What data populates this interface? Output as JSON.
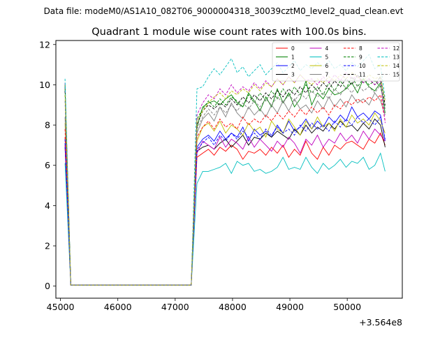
{
  "suptitle": "Data file: modeM0/AS1A10_082T06_9000004318_30039cztM0_level2_quad_clean.evt",
  "chart_data": {
    "type": "line",
    "title": "Quadrant 1 module wise count rates with 100.0s bins.",
    "xlabel": "",
    "ylabel": "",
    "x_offset_label": "+3.564e8",
    "xlim": [
      44920,
      50960
    ],
    "ylim": [
      -0.6,
      12.2
    ],
    "xticks": [
      45000,
      46000,
      47000,
      48000,
      49000,
      50000
    ],
    "yticks": [
      0,
      2,
      4,
      6,
      8,
      10,
      12
    ],
    "grid": false,
    "legend_position": "top-right",
    "x": [
      45080,
      45180,
      47280,
      47380,
      47480,
      47580,
      47680,
      47780,
      47880,
      47980,
      48080,
      48180,
      48280,
      48380,
      48480,
      48580,
      48680,
      48780,
      48880,
      48980,
      49080,
      49180,
      49280,
      49380,
      49480,
      49580,
      49680,
      49780,
      49880,
      49980,
      50080,
      50180,
      50280,
      50380,
      50480,
      50580,
      50660
    ],
    "series": [
      {
        "name": "0",
        "color": "#ff0000",
        "dash": "solid",
        "values": [
          7.4,
          0.05,
          0.05,
          6.4,
          6.6,
          6.8,
          6.5,
          6.9,
          6.7,
          7.0,
          6.8,
          6.3,
          6.7,
          6.6,
          6.8,
          6.5,
          6.9,
          6.6,
          7.0,
          6.4,
          6.8,
          6.5,
          7.2,
          6.6,
          6.3,
          6.9,
          6.5,
          7.0,
          6.8,
          7.1,
          7.2,
          7.0,
          6.8,
          7.3,
          7.1,
          7.6,
          7.0
        ]
      },
      {
        "name": "1",
        "color": "#008000",
        "dash": "solid",
        "values": [
          9.9,
          0.05,
          0.05,
          7.9,
          8.9,
          9.1,
          9.2,
          9.0,
          9.3,
          9.5,
          9.1,
          8.9,
          9.6,
          9.2,
          8.7,
          9.4,
          8.9,
          9.8,
          9.1,
          9.6,
          8.9,
          9.3,
          10.2,
          9.0,
          9.6,
          9.3,
          9.8,
          9.5,
          9.6,
          9.8,
          10.1,
          9.6,
          10.3,
          9.9,
          9.7,
          10.1,
          8.6
        ]
      },
      {
        "name": "2",
        "color": "#0000ff",
        "dash": "solid",
        "values": [
          7.1,
          0.05,
          0.05,
          6.9,
          7.3,
          7.5,
          7.2,
          7.7,
          7.3,
          7.6,
          7.4,
          7.9,
          7.2,
          7.8,
          7.5,
          7.7,
          7.4,
          8.0,
          7.6,
          8.2,
          7.7,
          7.9,
          8.3,
          7.8,
          8.2,
          7.9,
          8.4,
          8.1,
          8.5,
          8.2,
          8.9,
          8.4,
          8.6,
          8.3,
          8.7,
          8.5,
          7.2
        ]
      },
      {
        "name": "3",
        "color": "#000000",
        "dash": "solid",
        "values": [
          6.9,
          0.05,
          0.05,
          6.7,
          6.9,
          7.0,
          6.8,
          7.1,
          7.3,
          6.9,
          7.2,
          7.5,
          7.0,
          7.4,
          7.3,
          7.6,
          7.4,
          7.7,
          7.5,
          7.3,
          7.8,
          7.5,
          8.0,
          7.6,
          7.9,
          7.7,
          8.1,
          7.8,
          8.2,
          7.9,
          8.0,
          7.7,
          8.1,
          7.8,
          8.3,
          8.0,
          6.9
        ]
      },
      {
        "name": "4",
        "color": "#bf00bf",
        "dash": "solid",
        "values": [
          7.0,
          0.05,
          0.05,
          6.6,
          7.2,
          7.0,
          6.8,
          7.4,
          6.9,
          7.3,
          7.1,
          6.8,
          7.4,
          6.9,
          7.3,
          7.0,
          6.7,
          7.2,
          6.9,
          7.4,
          7.1,
          6.6,
          7.3,
          7.0,
          7.5,
          6.9,
          7.3,
          7.1,
          7.6,
          7.2,
          7.5,
          7.1,
          7.7,
          7.3,
          7.8,
          7.5,
          7.2
        ]
      },
      {
        "name": "5",
        "color": "#00bfbf",
        "dash": "solid",
        "values": [
          6.1,
          0.05,
          0.05,
          5.1,
          5.7,
          5.7,
          5.8,
          5.9,
          6.1,
          5.6,
          6.2,
          6.0,
          6.1,
          5.7,
          5.8,
          5.6,
          5.7,
          5.9,
          6.4,
          5.8,
          5.9,
          5.8,
          6.4,
          5.9,
          5.6,
          6.1,
          5.8,
          6.0,
          6.3,
          5.9,
          6.2,
          6.1,
          6.4,
          5.8,
          6.0,
          6.6,
          5.7
        ]
      },
      {
        "name": "6",
        "color": "#bfbf00",
        "dash": "solid",
        "values": [
          8.1,
          0.05,
          0.05,
          7.2,
          7.9,
          8.1,
          7.7,
          8.2,
          7.6,
          8.0,
          7.8,
          7.5,
          8.1,
          7.7,
          7.9,
          7.4,
          8.2,
          7.8,
          7.6,
          8.3,
          7.9,
          7.5,
          8.2,
          7.8,
          8.4,
          7.9,
          8.1,
          7.7,
          8.3,
          7.9,
          8.5,
          8.1,
          8.3,
          8.0,
          8.6,
          8.2,
          7.6
        ]
      },
      {
        "name": "7",
        "color": "#808080",
        "dash": "solid",
        "values": [
          8.4,
          0.05,
          0.05,
          7.6,
          8.3,
          8.6,
          8.2,
          8.9,
          8.4,
          9.1,
          8.6,
          8.3,
          8.9,
          8.5,
          8.8,
          8.4,
          9.0,
          8.6,
          9.2,
          8.7,
          9.3,
          8.8,
          9.0,
          8.6,
          9.2,
          8.8,
          9.4,
          8.9,
          9.3,
          8.9,
          9.5,
          9.1,
          9.3,
          9.0,
          9.6,
          9.2,
          8.5
        ]
      },
      {
        "name": "8",
        "color": "#ff0000",
        "dash": "dashed",
        "values": [
          7.8,
          0.05,
          0.05,
          7.4,
          7.9,
          8.2,
          7.8,
          8.3,
          7.9,
          8.1,
          7.8,
          8.4,
          8.0,
          8.3,
          8.1,
          8.5,
          8.2,
          8.6,
          8.3,
          8.7,
          8.4,
          8.8,
          8.5,
          8.9,
          8.6,
          8.9,
          8.5,
          9.0,
          8.8,
          9.2,
          9.0,
          9.3,
          9.1,
          9.4,
          9.2,
          9.5,
          8.2
        ]
      },
      {
        "name": "9",
        "color": "#008000",
        "dash": "dashed",
        "values": [
          10.0,
          0.05,
          0.05,
          8.3,
          8.8,
          9.2,
          8.9,
          9.3,
          9.0,
          9.4,
          9.2,
          8.9,
          9.5,
          9.1,
          9.6,
          9.2,
          9.7,
          9.3,
          9.8,
          9.4,
          9.9,
          9.5,
          10.0,
          9.6,
          9.9,
          9.5,
          10.1,
          9.7,
          10.2,
          9.8,
          10.4,
          9.9,
          10.3,
          10.0,
          10.2,
          9.9,
          8.9
        ]
      },
      {
        "name": "10",
        "color": "#0000ff",
        "dash": "dashed",
        "values": [
          7.3,
          0.05,
          0.05,
          6.8,
          7.1,
          7.4,
          7.0,
          7.5,
          7.2,
          7.6,
          7.3,
          7.7,
          7.4,
          7.6,
          7.3,
          7.8,
          7.5,
          7.9,
          7.6,
          7.8,
          7.5,
          8.0,
          7.7,
          8.1,
          7.8,
          8.0,
          7.7,
          8.2,
          7.9,
          8.3,
          8.0,
          8.4,
          8.1,
          8.3,
          8.0,
          8.4,
          7.3
        ]
      },
      {
        "name": "11",
        "color": "#000000",
        "dash": "dashed",
        "values": [
          9.7,
          0.05,
          0.05,
          8.0,
          8.7,
          9.0,
          8.8,
          9.1,
          8.9,
          9.3,
          9.0,
          9.4,
          9.1,
          9.5,
          9.2,
          9.6,
          9.3,
          9.7,
          9.4,
          9.8,
          9.5,
          9.9,
          9.6,
          10.0,
          9.7,
          10.1,
          9.8,
          10.2,
          9.9,
          10.3,
          10.0,
          10.5,
          10.1,
          10.3,
          10.0,
          10.4,
          9.0
        ]
      },
      {
        "name": "12",
        "color": "#bf00bf",
        "dash": "dashed",
        "values": [
          10.1,
          0.05,
          0.05,
          8.5,
          9.1,
          9.5,
          9.3,
          9.8,
          9.5,
          10.0,
          9.6,
          9.9,
          9.7,
          10.1,
          9.8,
          10.2,
          9.9,
          10.3,
          10.0,
          10.4,
          10.1,
          10.5,
          10.2,
          10.3,
          10.0,
          10.4,
          10.1,
          10.5,
          10.2,
          10.6,
          10.3,
          10.4,
          10.1,
          10.3,
          10.0,
          10.2,
          8.1
        ]
      },
      {
        "name": "13",
        "color": "#00bfbf",
        "dash": "dashed",
        "values": [
          10.3,
          0.05,
          0.05,
          9.8,
          9.9,
          10.4,
          10.8,
          10.5,
          10.9,
          11.3,
          10.6,
          10.9,
          10.4,
          10.7,
          11.0,
          10.5,
          10.8,
          11.1,
          10.6,
          10.9,
          11.2,
          10.7,
          11.0,
          10.8,
          11.1,
          10.9,
          11.2,
          10.8,
          11.0,
          10.7,
          11.1,
          10.9,
          11.2,
          11.5,
          10.8,
          11.0,
          9.3
        ]
      },
      {
        "name": "14",
        "color": "#bfbf00",
        "dash": "dashed",
        "values": [
          9.5,
          0.05,
          0.05,
          8.2,
          8.7,
          9.1,
          9.4,
          9.6,
          9.3,
          9.7,
          9.5,
          9.8,
          9.6,
          10.0,
          9.7,
          10.1,
          9.9,
          10.3,
          10.0,
          10.4,
          10.1,
          10.5,
          10.2,
          10.0,
          10.3,
          10.1,
          10.4,
          10.2,
          10.5,
          10.3,
          10.6,
          10.4,
          10.2,
          10.5,
          10.3,
          10.4,
          9.2
        ]
      },
      {
        "name": "15",
        "color": "#808080",
        "dash": "dashed",
        "values": [
          9.2,
          0.05,
          0.05,
          7.8,
          8.4,
          8.8,
          8.5,
          8.9,
          8.6,
          9.0,
          8.7,
          9.1,
          8.8,
          9.2,
          8.9,
          9.3,
          9.0,
          9.4,
          9.1,
          9.5,
          9.2,
          9.6,
          9.3,
          9.7,
          9.4,
          9.6,
          9.3,
          9.8,
          9.5,
          9.9,
          9.6,
          10.0,
          9.7,
          9.9,
          9.6,
          10.0,
          8.8
        ]
      }
    ]
  }
}
